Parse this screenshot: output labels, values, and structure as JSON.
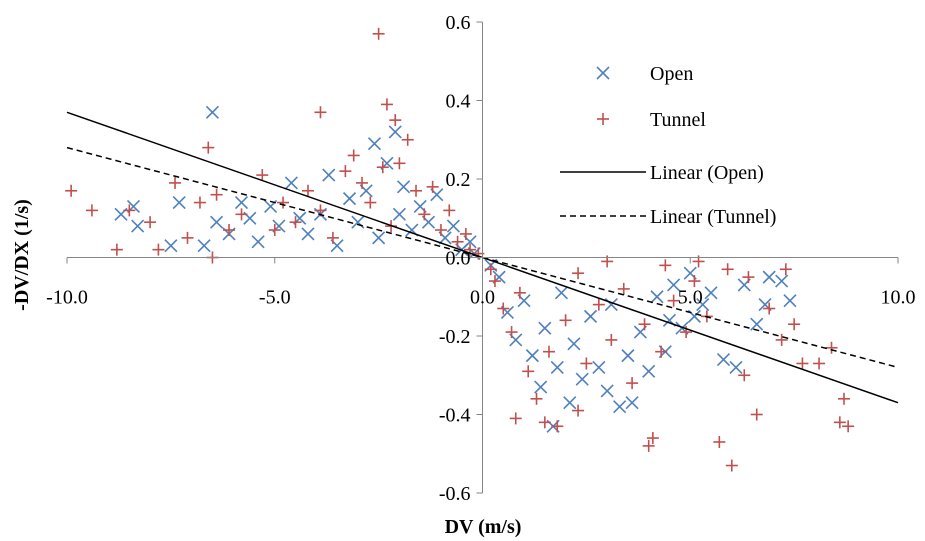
{
  "chart_data": {
    "type": "scatter",
    "xlabel": "DV (m/s)",
    "ylabel": "-DV/DX (1/s)",
    "xlim": [
      -10,
      10
    ],
    "ylim": [
      -0.6,
      0.6
    ],
    "x_ticks": [
      "-10.0",
      "-5.0",
      "0.0",
      "5.0",
      "10.0"
    ],
    "y_ticks": [
      "0.6",
      "0.4",
      "0.2",
      "0.0",
      "-0.2",
      "-0.4",
      "-0.6"
    ],
    "x_tick_values": [
      -10,
      -5,
      0,
      5,
      10
    ],
    "y_tick_values": [
      0.6,
      0.4,
      0.2,
      0.0,
      -0.2,
      -0.4,
      -0.6
    ],
    "grid": false,
    "legend_position": "top-right, inside plot",
    "series": [
      {
        "name": "Open",
        "kind": "points",
        "marker": "x",
        "color": "#4f81bd",
        "points": [
          [
            -6.5,
            0.37
          ],
          [
            -8.7,
            0.11
          ],
          [
            -8.4,
            0.13
          ],
          [
            -8.3,
            0.08
          ],
          [
            -7.5,
            0.03
          ],
          [
            -7.3,
            0.14
          ],
          [
            -6.7,
            0.03
          ],
          [
            -6.4,
            0.09
          ],
          [
            -6.1,
            0.06
          ],
          [
            -5.8,
            0.14
          ],
          [
            -5.6,
            0.1
          ],
          [
            -5.4,
            0.04
          ],
          [
            -5.1,
            0.13
          ],
          [
            -4.9,
            0.08
          ],
          [
            -4.6,
            0.19
          ],
          [
            -4.4,
            0.1
          ],
          [
            -4.2,
            0.06
          ],
          [
            -3.9,
            0.11
          ],
          [
            -3.7,
            0.21
          ],
          [
            -3.5,
            0.03
          ],
          [
            -3.2,
            0.15
          ],
          [
            -3.0,
            0.09
          ],
          [
            -2.8,
            0.17
          ],
          [
            -2.6,
            0.29
          ],
          [
            -2.5,
            0.05
          ],
          [
            -2.3,
            0.24
          ],
          [
            -2.1,
            0.32
          ],
          [
            -2.0,
            0.11
          ],
          [
            -1.9,
            0.18
          ],
          [
            -1.7,
            0.07
          ],
          [
            -1.5,
            0.13
          ],
          [
            -1.3,
            0.09
          ],
          [
            -1.1,
            0.16
          ],
          [
            -0.9,
            0.05
          ],
          [
            -0.7,
            0.08
          ],
          [
            -0.5,
            0.02
          ],
          [
            -0.3,
            0.04
          ],
          [
            -0.2,
            0.01
          ],
          [
            0.2,
            -0.02
          ],
          [
            0.4,
            -0.05
          ],
          [
            0.6,
            -0.14
          ],
          [
            0.8,
            -0.21
          ],
          [
            1.0,
            -0.11
          ],
          [
            1.2,
            -0.25
          ],
          [
            1.4,
            -0.33
          ],
          [
            1.5,
            -0.18
          ],
          [
            1.7,
            -0.43
          ],
          [
            1.8,
            -0.28
          ],
          [
            1.9,
            -0.09
          ],
          [
            2.1,
            -0.37
          ],
          [
            2.2,
            -0.22
          ],
          [
            2.4,
            -0.31
          ],
          [
            2.6,
            -0.15
          ],
          [
            2.8,
            -0.28
          ],
          [
            3.0,
            -0.34
          ],
          [
            3.1,
            -0.12
          ],
          [
            3.3,
            -0.38
          ],
          [
            3.5,
            -0.25
          ],
          [
            3.6,
            -0.37
          ],
          [
            3.8,
            -0.19
          ],
          [
            4.0,
            -0.29
          ],
          [
            4.2,
            -0.1
          ],
          [
            4.4,
            -0.24
          ],
          [
            4.6,
            -0.07
          ],
          [
            4.8,
            -0.18
          ],
          [
            5.0,
            -0.04
          ],
          [
            5.3,
            -0.12
          ],
          [
            5.5,
            -0.09
          ],
          [
            5.8,
            -0.26
          ],
          [
            6.1,
            -0.28
          ],
          [
            6.3,
            -0.07
          ],
          [
            6.6,
            -0.17
          ],
          [
            6.9,
            -0.05
          ],
          [
            7.2,
            -0.06
          ],
          [
            7.4,
            -0.11
          ],
          [
            6.8,
            -0.12
          ],
          [
            5.1,
            -0.15
          ],
          [
            4.5,
            -0.16
          ]
        ]
      },
      {
        "name": "Tunnel",
        "kind": "points",
        "marker": "+",
        "color": "#c0504d",
        "points": [
          [
            -2.5,
            0.57
          ],
          [
            -2.3,
            0.39
          ],
          [
            -2.1,
            0.35
          ],
          [
            -3.9,
            0.37
          ],
          [
            -6.6,
            0.28
          ],
          [
            -9.9,
            0.17
          ],
          [
            -9.4,
            0.12
          ],
          [
            -8.5,
            0.12
          ],
          [
            -8.0,
            0.09
          ],
          [
            -7.4,
            0.19
          ],
          [
            -7.1,
            0.05
          ],
          [
            -6.8,
            0.14
          ],
          [
            -6.4,
            0.16
          ],
          [
            -6.1,
            0.07
          ],
          [
            -5.8,
            0.11
          ],
          [
            -5.3,
            0.21
          ],
          [
            -5.0,
            0.07
          ],
          [
            -4.8,
            0.14
          ],
          [
            -4.5,
            0.09
          ],
          [
            -4.2,
            0.17
          ],
          [
            -3.9,
            0.12
          ],
          [
            -3.6,
            0.05
          ],
          [
            -3.3,
            0.22
          ],
          [
            -3.1,
            0.26
          ],
          [
            -2.9,
            0.19
          ],
          [
            -2.7,
            0.14
          ],
          [
            -2.4,
            0.23
          ],
          [
            -2.2,
            0.08
          ],
          [
            -2.0,
            0.24
          ],
          [
            -1.8,
            0.3
          ],
          [
            -1.6,
            0.17
          ],
          [
            -1.4,
            0.11
          ],
          [
            -1.2,
            0.18
          ],
          [
            -1.0,
            0.07
          ],
          [
            -0.8,
            0.12
          ],
          [
            -0.6,
            0.04
          ],
          [
            -0.4,
            0.06
          ],
          [
            -0.3,
            0.02
          ],
          [
            -0.1,
            0.01
          ],
          [
            -7.8,
            0.02
          ],
          [
            -8.8,
            0.02
          ],
          [
            -6.5,
            0.0
          ],
          [
            0.2,
            -0.03
          ],
          [
            0.3,
            -0.06
          ],
          [
            0.5,
            -0.13
          ],
          [
            0.7,
            -0.19
          ],
          [
            0.9,
            -0.09
          ],
          [
            1.1,
            -0.29
          ],
          [
            1.3,
            -0.36
          ],
          [
            1.6,
            -0.24
          ],
          [
            1.8,
            -0.43
          ],
          [
            2.0,
            -0.16
          ],
          [
            2.3,
            -0.39
          ],
          [
            2.5,
            -0.27
          ],
          [
            2.8,
            -0.12
          ],
          [
            3.1,
            -0.21
          ],
          [
            3.4,
            -0.08
          ],
          [
            3.6,
            -0.32
          ],
          [
            3.9,
            -0.17
          ],
          [
            4.1,
            -0.46
          ],
          [
            4.3,
            -0.24
          ],
          [
            4.6,
            -0.11
          ],
          [
            4.9,
            -0.19
          ],
          [
            5.1,
            -0.06
          ],
          [
            5.4,
            -0.15
          ],
          [
            5.7,
            -0.47
          ],
          [
            6.0,
            -0.53
          ],
          [
            6.3,
            -0.3
          ],
          [
            6.6,
            -0.4
          ],
          [
            6.9,
            -0.13
          ],
          [
            7.2,
            -0.21
          ],
          [
            7.5,
            -0.17
          ],
          [
            7.7,
            -0.27
          ],
          [
            8.1,
            -0.27
          ],
          [
            8.4,
            -0.23
          ],
          [
            8.6,
            -0.42
          ],
          [
            8.7,
            -0.36
          ],
          [
            8.8,
            -0.43
          ],
          [
            1.5,
            -0.42
          ],
          [
            4.0,
            -0.48
          ],
          [
            5.2,
            -0.01
          ],
          [
            5.9,
            -0.03
          ],
          [
            6.4,
            -0.05
          ],
          [
            4.4,
            -0.02
          ],
          [
            3.0,
            -0.01
          ],
          [
            2.3,
            -0.04
          ],
          [
            7.3,
            -0.03
          ],
          [
            0.8,
            -0.41
          ]
        ]
      },
      {
        "name": "Linear (Open)",
        "kind": "line",
        "style": "solid",
        "color": "#000000",
        "x": [
          -10,
          10
        ],
        "y": [
          0.37,
          -0.37
        ]
      },
      {
        "name": "Linear (Tunnel)",
        "kind": "line",
        "style": "dashed",
        "color": "#000000",
        "x": [
          -10,
          10
        ],
        "y": [
          0.28,
          -0.28
        ]
      }
    ]
  }
}
